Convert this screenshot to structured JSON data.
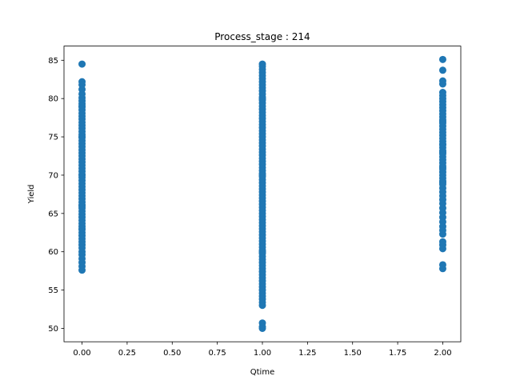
{
  "chart_data": {
    "type": "scatter",
    "title": "Process_stage : 214",
    "xlabel": "Qtime",
    "ylabel": "Yield",
    "xlim": [
      -0.1,
      2.1
    ],
    "ylim": [
      48.25,
      86.85
    ],
    "x_ticks": [
      0.0,
      0.25,
      0.5,
      0.75,
      1.0,
      1.25,
      1.5,
      1.75,
      2.0
    ],
    "x_tick_labels": [
      "0.00",
      "0.25",
      "0.50",
      "0.75",
      "1.00",
      "1.25",
      "1.50",
      "1.75",
      "2.00"
    ],
    "y_ticks": [
      50,
      55,
      60,
      65,
      70,
      75,
      80,
      85
    ],
    "y_tick_labels": [
      "50",
      "55",
      "60",
      "65",
      "70",
      "75",
      "80",
      "85"
    ],
    "grid": false,
    "legend": "none",
    "marker_color": "#1f77b4",
    "series": [
      {
        "x": [
          0,
          0,
          0,
          0,
          0,
          0,
          0,
          0,
          0,
          0,
          0,
          0,
          0,
          0,
          0,
          0,
          0,
          0,
          0,
          0,
          0,
          0,
          0,
          0,
          0,
          0,
          0,
          0,
          0,
          0,
          0,
          0,
          0,
          0,
          0,
          0,
          0,
          0,
          0,
          0,
          0,
          0,
          0,
          0,
          0,
          0,
          0,
          0,
          0,
          0,
          0,
          0,
          0,
          0,
          0,
          0,
          0,
          0,
          0,
          0,
          0,
          0,
          0,
          0,
          0,
          0
        ],
        "y": [
          84.5,
          82.2,
          81.8,
          81.2,
          80.6,
          80.1,
          79.7,
          79.3,
          78.9,
          78.5,
          78.1,
          77.7,
          77.3,
          76.9,
          76.5,
          76.1,
          75.7,
          75.3,
          74.9,
          74.5,
          74.1,
          73.7,
          73.3,
          72.9,
          72.5,
          72.1,
          71.7,
          71.3,
          70.9,
          70.5,
          70.1,
          69.7,
          69.3,
          68.9,
          68.5,
          68.1,
          67.7,
          67.3,
          66.9,
          66.5,
          66.1,
          65.7,
          65.3,
          64.9,
          64.5,
          64.1,
          63.7,
          63.3,
          62.9,
          62.5,
          62.1,
          61.7,
          61.3,
          60.9,
          60.5,
          60.0,
          59.6,
          59.1,
          58.6,
          58.1,
          57.6,
          79.0,
          75.0,
          70.0,
          66.0,
          63.0
        ]
      },
      {
        "x": [
          1,
          1,
          1,
          1,
          1,
          1,
          1,
          1,
          1,
          1,
          1,
          1,
          1,
          1,
          1,
          1,
          1,
          1,
          1,
          1,
          1,
          1,
          1,
          1,
          1,
          1,
          1,
          1,
          1,
          1,
          1,
          1,
          1,
          1,
          1,
          1,
          1,
          1,
          1,
          1,
          1,
          1,
          1,
          1,
          1,
          1,
          1,
          1,
          1,
          1,
          1,
          1,
          1,
          1,
          1,
          1,
          1,
          1,
          1,
          1,
          1,
          1,
          1,
          1,
          1,
          1,
          1,
          1,
          1,
          1,
          1,
          1,
          1,
          1,
          1,
          1,
          1,
          1,
          1,
          1,
          1,
          1,
          1,
          1,
          1,
          1
        ],
        "y": [
          84.5,
          84.2,
          83.8,
          83.4,
          83.0,
          82.6,
          82.2,
          81.8,
          81.4,
          81.0,
          80.6,
          80.2,
          79.8,
          79.4,
          79.0,
          78.6,
          78.2,
          77.8,
          77.4,
          77.0,
          76.6,
          76.2,
          75.8,
          75.4,
          75.0,
          74.6,
          74.2,
          73.8,
          73.4,
          73.0,
          72.6,
          72.2,
          71.8,
          71.4,
          71.0,
          70.6,
          70.2,
          69.8,
          69.4,
          69.0,
          68.6,
          68.2,
          67.8,
          67.4,
          67.0,
          66.6,
          66.2,
          65.8,
          65.4,
          65.0,
          64.6,
          64.2,
          63.8,
          63.4,
          63.0,
          62.6,
          62.2,
          61.8,
          61.4,
          61.0,
          60.6,
          60.2,
          59.8,
          59.4,
          59.0,
          58.6,
          58.2,
          57.8,
          57.4,
          57.0,
          56.6,
          56.2,
          55.8,
          55.4,
          55.0,
          54.6,
          54.2,
          53.8,
          53.4,
          53.0,
          50.7,
          50.2,
          50.0,
          60.0,
          70.0,
          80.0
        ]
      },
      {
        "x": [
          2,
          2,
          2,
          2,
          2,
          2,
          2,
          2,
          2,
          2,
          2,
          2,
          2,
          2,
          2,
          2,
          2,
          2,
          2,
          2,
          2,
          2,
          2,
          2,
          2,
          2,
          2,
          2,
          2,
          2,
          2,
          2,
          2,
          2,
          2,
          2,
          2,
          2,
          2,
          2,
          2,
          2,
          2,
          2,
          2,
          2,
          2,
          2,
          2,
          2,
          2,
          2,
          2,
          2,
          2,
          2,
          2
        ],
        "y": [
          85.1,
          83.7,
          82.3,
          81.9,
          80.8,
          80.4,
          80.0,
          79.6,
          79.2,
          78.8,
          78.4,
          78.0,
          77.6,
          77.2,
          76.8,
          76.4,
          76.0,
          75.6,
          75.2,
          74.8,
          74.4,
          74.0,
          73.6,
          73.2,
          72.8,
          72.4,
          72.0,
          71.6,
          71.2,
          70.8,
          70.4,
          70.0,
          69.6,
          69.2,
          68.8,
          68.3,
          67.8,
          67.3,
          66.8,
          66.3,
          65.7,
          65.1,
          64.5,
          63.9,
          63.3,
          62.8,
          62.3,
          61.3,
          60.9,
          60.4,
          58.3,
          57.8,
          74.0,
          71.0,
          77.0,
          69.0,
          73.0
        ]
      }
    ]
  }
}
